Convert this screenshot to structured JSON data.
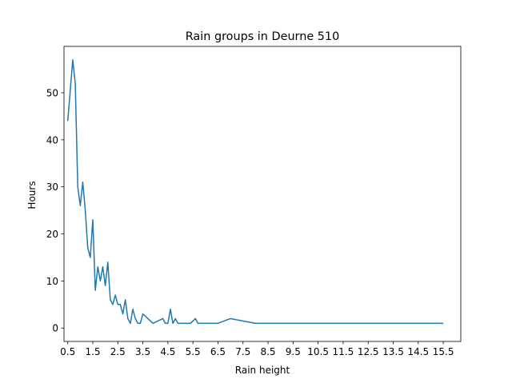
{
  "chart_data": {
    "type": "line",
    "title": "Rain groups in Deurne 510",
    "xlabel": "Rain height",
    "ylabel": "Hours",
    "xlim": [
      0.35,
      16.2
    ],
    "ylim": [
      -2.85,
      59.85
    ],
    "x_ticks": [
      {
        "value": 0.5,
        "label": "0.5"
      },
      {
        "value": 1.5,
        "label": "1.5"
      },
      {
        "value": 2.5,
        "label": "2.5"
      },
      {
        "value": 3.5,
        "label": "3.5"
      },
      {
        "value": 4.5,
        "label": "4.5"
      },
      {
        "value": 5.5,
        "label": "5.5"
      },
      {
        "value": 6.5,
        "label": "6.5"
      },
      {
        "value": 7.5,
        "label": "7.5"
      },
      {
        "value": 8.5,
        "label": "8.5"
      },
      {
        "value": 9.5,
        "label": "9.5"
      },
      {
        "value": 10.5,
        "label": "10.5"
      },
      {
        "value": 11.5,
        "label": "11.5"
      },
      {
        "value": 12.5,
        "label": "12.5"
      },
      {
        "value": 13.5,
        "label": "13.5"
      },
      {
        "value": 14.5,
        "label": "14.5"
      },
      {
        "value": 15.5,
        "label": "15.5"
      }
    ],
    "y_ticks": [
      {
        "value": 0,
        "label": "0"
      },
      {
        "value": 10,
        "label": "10"
      },
      {
        "value": 20,
        "label": "20"
      },
      {
        "value": 30,
        "label": "30"
      },
      {
        "value": 40,
        "label": "40"
      },
      {
        "value": 50,
        "label": "50"
      }
    ],
    "grid": false,
    "color": "#1f77b4",
    "series": [
      {
        "points": [
          [
            0.5,
            44
          ],
          [
            0.7,
            57
          ],
          [
            0.8,
            52
          ],
          [
            0.9,
            30
          ],
          [
            1.0,
            26
          ],
          [
            1.1,
            31
          ],
          [
            1.2,
            25
          ],
          [
            1.3,
            17
          ],
          [
            1.4,
            15
          ],
          [
            1.5,
            23
          ],
          [
            1.6,
            8
          ],
          [
            1.7,
            13
          ],
          [
            1.8,
            10
          ],
          [
            1.9,
            13
          ],
          [
            2.0,
            9
          ],
          [
            2.1,
            14
          ],
          [
            2.2,
            6
          ],
          [
            2.3,
            5
          ],
          [
            2.4,
            7
          ],
          [
            2.5,
            5
          ],
          [
            2.6,
            5
          ],
          [
            2.7,
            3
          ],
          [
            2.8,
            6
          ],
          [
            2.9,
            2
          ],
          [
            3.0,
            1
          ],
          [
            3.1,
            4
          ],
          [
            3.2,
            2
          ],
          [
            3.3,
            1
          ],
          [
            3.4,
            1
          ],
          [
            3.5,
            3
          ],
          [
            3.7,
            2
          ],
          [
            3.9,
            1
          ],
          [
            4.1,
            1.5
          ],
          [
            4.3,
            2
          ],
          [
            4.4,
            1
          ],
          [
            4.5,
            1
          ],
          [
            4.6,
            4
          ],
          [
            4.7,
            1
          ],
          [
            4.8,
            2
          ],
          [
            4.9,
            1
          ],
          [
            5.0,
            1
          ],
          [
            5.2,
            1
          ],
          [
            5.4,
            1
          ],
          [
            5.6,
            2
          ],
          [
            5.7,
            1
          ],
          [
            6.0,
            1
          ],
          [
            6.5,
            1
          ],
          [
            7.0,
            2
          ],
          [
            8.0,
            1
          ],
          [
            15.5,
            1
          ]
        ]
      }
    ]
  }
}
